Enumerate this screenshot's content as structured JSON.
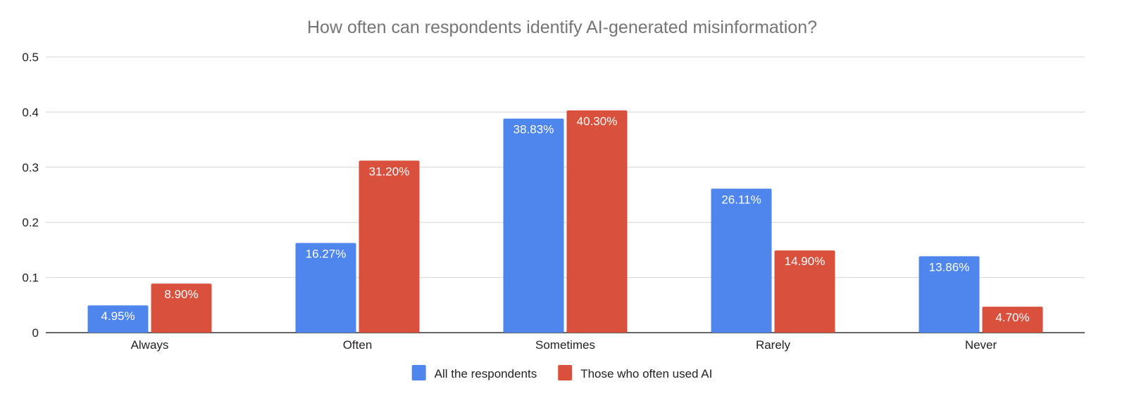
{
  "chart_data": {
    "type": "bar",
    "title": "How often can respondents identify AI-generated misinformation?",
    "xlabel": "",
    "ylabel": "",
    "categories": [
      "Always",
      "Often",
      "Sometimes",
      "Rarely",
      "Never"
    ],
    "series": [
      {
        "name": "All the respondents",
        "color": "#4E86EE",
        "values": [
          0.0495,
          0.1627,
          0.3883,
          0.2611,
          0.1386
        ],
        "labels": [
          "4.95%",
          "16.27%",
          "38.83%",
          "26.11%",
          "13.86%"
        ]
      },
      {
        "name": "Those who often used AI",
        "color": "#D9513C",
        "values": [
          0.089,
          0.312,
          0.403,
          0.149,
          0.047
        ],
        "labels": [
          "8.90%",
          "31.20%",
          "40.30%",
          "14.90%",
          "4.70%"
        ]
      }
    ],
    "ylim": [
      0,
      0.5
    ],
    "yticks": [
      "0",
      "0.1",
      "0.2",
      "0.3",
      "0.4",
      "0.5"
    ],
    "grid": true,
    "legend_position": "bottom"
  }
}
